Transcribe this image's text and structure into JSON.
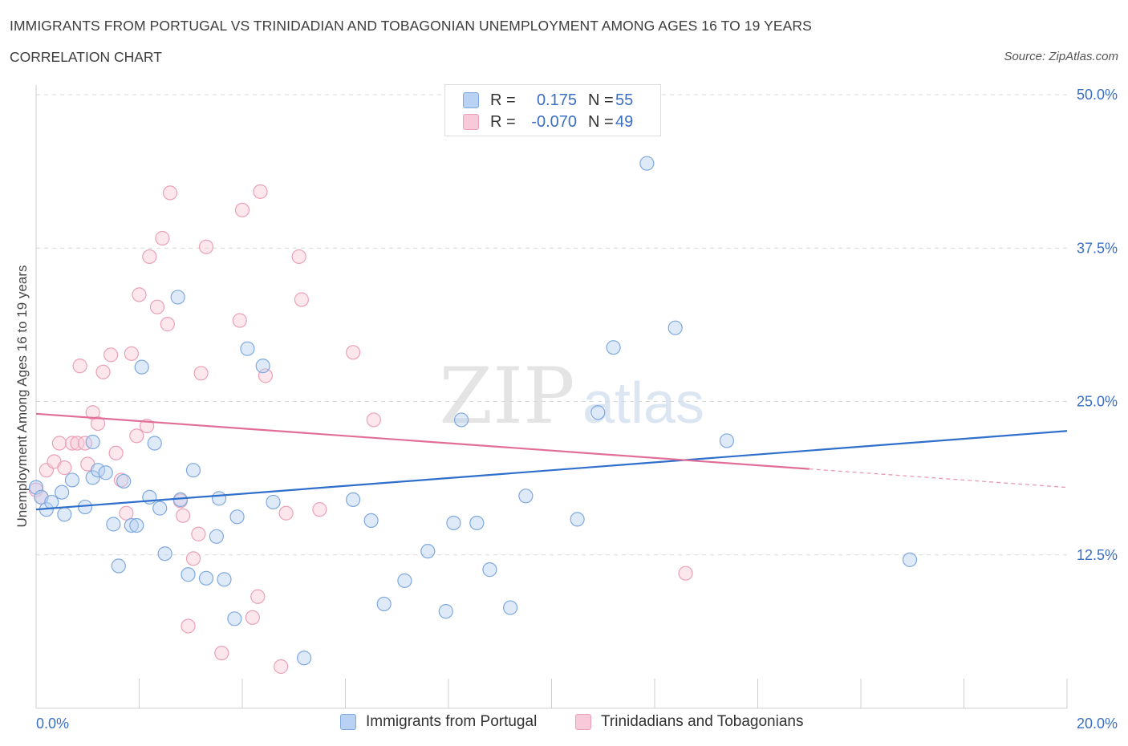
{
  "header": {
    "title": "IMMIGRANTS FROM PORTUGAL VS TRINIDADIAN AND TOBAGONIAN UNEMPLOYMENT AMONG AGES 16 TO 19 YEARS",
    "subtitle": "CORRELATION CHART",
    "source": "Source: ZipAtlas.com"
  },
  "watermark": {
    "zip": "ZIP",
    "atlas": "atlas"
  },
  "colors": {
    "blue_stroke": "#7fa9df",
    "blue_fill": "#b9d1f2",
    "blue_line": "#2f6fcc",
    "pink_stroke": "#eaa1b8",
    "pink_fill": "#f8c9d8",
    "pink_line": "#e06e98",
    "axis_text": "#3a6fc4",
    "grid": "#d9d9d9"
  },
  "legend": {
    "rows": [
      {
        "r_label": "R =",
        "r_value": "0.175",
        "n_label": "N =",
        "n_value": "55"
      },
      {
        "r_label": "R =",
        "r_value": "-0.070",
        "n_label": "N =",
        "n_value": "49"
      }
    ]
  },
  "bottom_legend": {
    "blue_label": "Immigrants from Portugal",
    "pink_label": "Trinidadians and Tobagonians"
  },
  "chart_data": {
    "type": "scatter",
    "title": "IMMIGRANTS FROM PORTUGAL VS TRINIDADIAN AND TOBAGONIAN UNEMPLOYMENT AMONG AGES 16 TO 19 YEARS",
    "xlabel": "",
    "ylabel": "Unemployment Among Ages 16 to 19 years",
    "xlim": [
      0,
      20
    ],
    "ylim": [
      0,
      50
    ],
    "x_tick_labels": [
      "0.0%",
      "20.0%"
    ],
    "y_tick_labels": [
      "12.5%",
      "25.0%",
      "37.5%",
      "50.0%"
    ],
    "y_ticks": [
      12.5,
      25,
      37.5,
      50
    ],
    "grid": true,
    "legend_position": "top-center",
    "series": [
      {
        "name": "Immigrants from Portugal",
        "color": "#7fa9df",
        "trend": {
          "x": [
            0,
            20
          ],
          "y": [
            16.2,
            22.6
          ]
        },
        "points": [
          [
            0.0,
            18.0
          ],
          [
            0.1,
            17.2
          ],
          [
            0.2,
            16.2
          ],
          [
            0.3,
            16.8
          ],
          [
            0.5,
            17.6
          ],
          [
            0.55,
            15.8
          ],
          [
            0.7,
            18.6
          ],
          [
            0.95,
            16.4
          ],
          [
            1.1,
            21.7
          ],
          [
            1.1,
            18.8
          ],
          [
            1.2,
            19.4
          ],
          [
            1.35,
            19.2
          ],
          [
            1.5,
            15.0
          ],
          [
            1.6,
            11.6
          ],
          [
            1.7,
            18.5
          ],
          [
            1.85,
            14.9
          ],
          [
            1.95,
            14.9
          ],
          [
            2.05,
            27.8
          ],
          [
            2.2,
            17.2
          ],
          [
            2.3,
            21.6
          ],
          [
            2.4,
            16.3
          ],
          [
            2.5,
            12.6
          ],
          [
            2.75,
            33.5
          ],
          [
            2.8,
            17.0
          ],
          [
            2.95,
            10.9
          ],
          [
            3.05,
            19.4
          ],
          [
            3.3,
            10.6
          ],
          [
            3.5,
            14.0
          ],
          [
            3.55,
            17.1
          ],
          [
            3.65,
            10.5
          ],
          [
            3.85,
            7.3
          ],
          [
            3.9,
            15.6
          ],
          [
            4.1,
            29.3
          ],
          [
            4.4,
            27.9
          ],
          [
            4.6,
            16.8
          ],
          [
            5.2,
            4.1
          ],
          [
            6.15,
            17.0
          ],
          [
            6.5,
            15.3
          ],
          [
            6.75,
            8.5
          ],
          [
            7.15,
            10.4
          ],
          [
            7.6,
            12.8
          ],
          [
            7.95,
            7.9
          ],
          [
            8.1,
            15.1
          ],
          [
            8.25,
            23.5
          ],
          [
            8.55,
            15.1
          ],
          [
            8.8,
            11.3
          ],
          [
            9.2,
            8.2
          ],
          [
            9.5,
            17.3
          ],
          [
            10.5,
            15.4
          ],
          [
            10.9,
            24.1
          ],
          [
            11.2,
            29.4
          ],
          [
            11.85,
            44.4
          ],
          [
            12.4,
            31.0
          ],
          [
            13.4,
            21.8
          ],
          [
            16.95,
            12.1
          ]
        ]
      },
      {
        "name": "Trinidadians and Tobagonians",
        "color": "#eaa1b8",
        "trend": {
          "x": [
            0,
            15
          ],
          "y": [
            24.0,
            19.5
          ],
          "dashed_to": {
            "x": 20,
            "y": 18.0
          }
        },
        "points": [
          [
            0.0,
            17.8
          ],
          [
            0.1,
            17.2
          ],
          [
            0.2,
            19.4
          ],
          [
            0.35,
            20.1
          ],
          [
            0.45,
            21.6
          ],
          [
            0.55,
            19.6
          ],
          [
            0.7,
            21.6
          ],
          [
            0.8,
            21.6
          ],
          [
            0.85,
            27.9
          ],
          [
            0.95,
            21.6
          ],
          [
            1.0,
            19.9
          ],
          [
            1.1,
            24.1
          ],
          [
            1.2,
            23.2
          ],
          [
            1.3,
            27.4
          ],
          [
            1.45,
            28.8
          ],
          [
            1.55,
            20.8
          ],
          [
            1.65,
            18.6
          ],
          [
            1.75,
            15.9
          ],
          [
            1.85,
            28.9
          ],
          [
            1.95,
            22.2
          ],
          [
            2.0,
            33.7
          ],
          [
            2.15,
            23.0
          ],
          [
            2.2,
            36.8
          ],
          [
            2.35,
            32.7
          ],
          [
            2.45,
            38.3
          ],
          [
            2.55,
            31.3
          ],
          [
            2.6,
            42.0
          ],
          [
            2.8,
            16.9
          ],
          [
            2.85,
            15.7
          ],
          [
            2.95,
            6.7
          ],
          [
            3.05,
            12.2
          ],
          [
            3.15,
            14.2
          ],
          [
            3.2,
            27.3
          ],
          [
            3.3,
            37.6
          ],
          [
            3.6,
            4.5
          ],
          [
            3.95,
            31.6
          ],
          [
            4.0,
            40.6
          ],
          [
            4.2,
            7.4
          ],
          [
            4.35,
            42.1
          ],
          [
            4.45,
            27.1
          ],
          [
            4.3,
            9.1
          ],
          [
            4.75,
            3.4
          ],
          [
            4.85,
            15.9
          ],
          [
            5.1,
            36.8
          ],
          [
            5.15,
            33.3
          ],
          [
            5.5,
            16.2
          ],
          [
            6.15,
            29.0
          ],
          [
            6.55,
            23.5
          ],
          [
            12.6,
            11.0
          ]
        ]
      }
    ]
  }
}
